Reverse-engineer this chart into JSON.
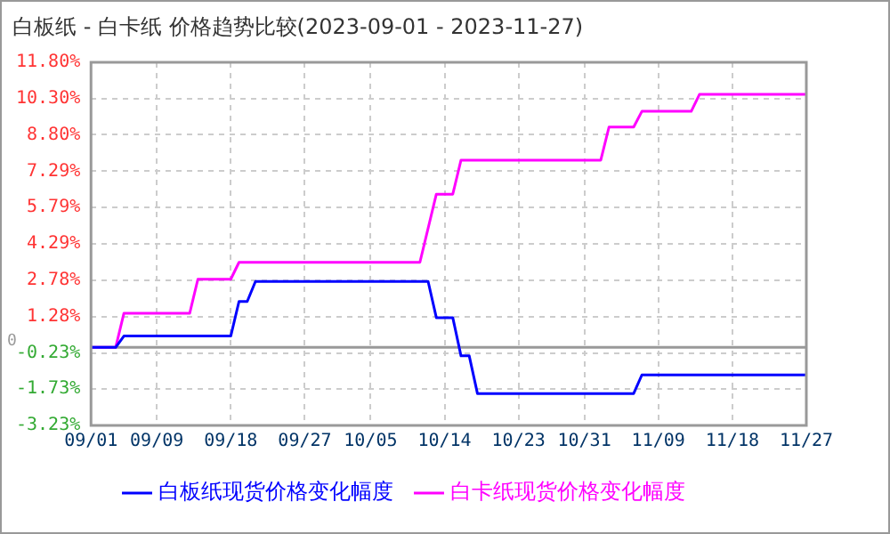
{
  "chart_data": {
    "type": "line",
    "title": "白板纸 - 白卡纸 价格趋势比较(2023-09-01 - 2023-11-27)",
    "series": [
      {
        "name": "白板纸现货价格变化幅度",
        "color": "#0000ff",
        "x": [
          "2023-09-01",
          "2023-09-04",
          "2023-09-05",
          "2023-09-18",
          "2023-09-19",
          "2023-09-20",
          "2023-09-21",
          "2023-10-12",
          "2023-10-13",
          "2023-10-15",
          "2023-10-16",
          "2023-10-17",
          "2023-10-18",
          "2023-11-06",
          "2023-11-07",
          "2023-11-27"
        ],
        "values": [
          0,
          0,
          0.47,
          0.47,
          1.9,
          1.9,
          2.73,
          2.73,
          1.23,
          1.23,
          -0.35,
          -0.35,
          -1.91,
          -1.91,
          -1.14,
          -1.14
        ]
      },
      {
        "name": "白卡纸现货价格变化幅度",
        "color": "#ff00ff",
        "x": [
          "2023-09-01",
          "2023-09-04",
          "2023-09-05",
          "2023-09-13",
          "2023-09-14",
          "2023-09-18",
          "2023-09-19",
          "2023-10-11",
          "2023-10-13",
          "2023-10-15",
          "2023-10-16",
          "2023-11-02",
          "2023-11-03",
          "2023-11-06",
          "2023-11-07",
          "2023-11-13",
          "2023-11-14",
          "2023-11-27"
        ],
        "values": [
          0,
          0,
          1.41,
          1.41,
          2.82,
          2.82,
          3.52,
          3.52,
          6.34,
          6.34,
          7.75,
          7.75,
          9.12,
          9.12,
          9.77,
          9.77,
          10.47,
          10.47
        ]
      }
    ],
    "xlim": [
      "2023-09-01",
      "2023-11-27"
    ],
    "xticks": [
      {
        "value": "2023-09-01",
        "label": "09/01"
      },
      {
        "value": "2023-09-09",
        "label": "09/09"
      },
      {
        "value": "2023-09-18",
        "label": "09/18"
      },
      {
        "value": "2023-09-27",
        "label": "09/27"
      },
      {
        "value": "2023-10-05",
        "label": "10/05"
      },
      {
        "value": "2023-10-14",
        "label": "10/14"
      },
      {
        "value": "2023-10-23",
        "label": "10/23"
      },
      {
        "value": "2023-10-31",
        "label": "10/31"
      },
      {
        "value": "2023-11-09",
        "label": "11/09"
      },
      {
        "value": "2023-11-18",
        "label": "11/18"
      },
      {
        "value": "2023-11-27",
        "label": "11/27"
      }
    ],
    "ylim": [
      -3.23,
      11.8
    ],
    "yticks": [
      {
        "value": -3.23,
        "label": "-3.23%"
      },
      {
        "value": -1.73,
        "label": "-1.73%"
      },
      {
        "value": -0.23,
        "label": "-0.23%"
      },
      {
        "value": 1.28,
        "label": "1.28%"
      },
      {
        "value": 2.78,
        "label": "2.78%"
      },
      {
        "value": 4.29,
        "label": "4.29%"
      },
      {
        "value": 5.79,
        "label": "5.79%"
      },
      {
        "value": 7.29,
        "label": "7.29%"
      },
      {
        "value": 8.8,
        "label": "8.80%"
      },
      {
        "value": 10.3,
        "label": "10.30%"
      },
      {
        "value": 11.8,
        "label": "11.80%"
      }
    ],
    "ref_lines": [
      {
        "axis": "y",
        "value": 0,
        "label": "0",
        "color": "#999999"
      }
    ],
    "grid": true,
    "legend": "bottom",
    "marker": "none",
    "line_style": "solid"
  }
}
